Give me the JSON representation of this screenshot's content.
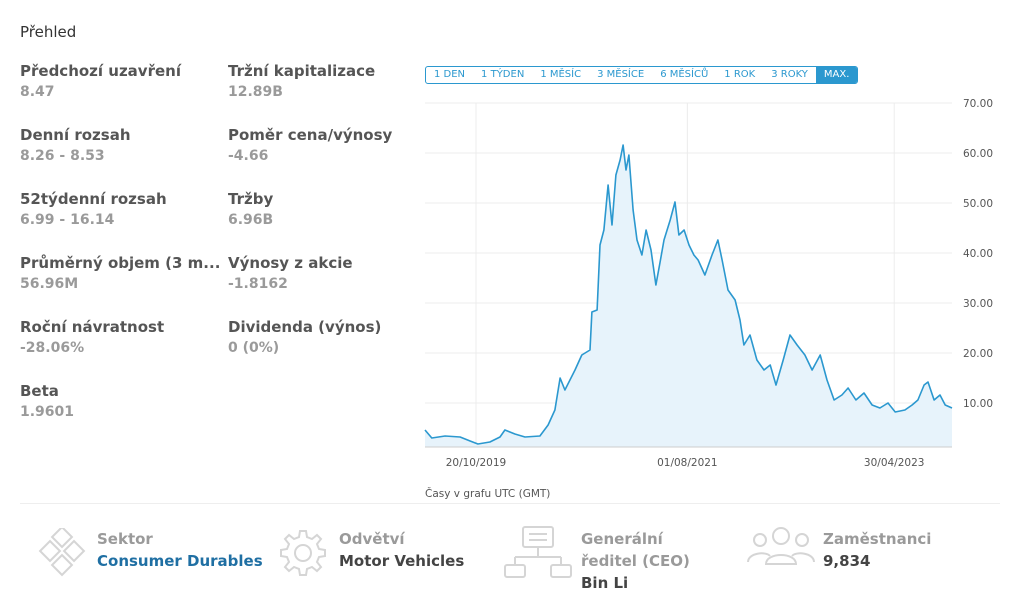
{
  "header": {
    "title": "Přehled"
  },
  "stats": [
    {
      "label": "Předchozí uzavření",
      "value": "8.47"
    },
    {
      "label": "Denní rozsah",
      "value": "8.26 - 8.53"
    },
    {
      "label": "52týdenní rozsah",
      "value": "6.99 - 16.14"
    },
    {
      "label": "Průměrný objem (3 m...",
      "value": "56.96M"
    },
    {
      "label": "Roční návratnost",
      "value": "-28.06%"
    },
    {
      "label": "Beta",
      "value": "1.9601"
    },
    {
      "label": "Tržní kapitalizace",
      "value": "12.89B"
    },
    {
      "label": "Poměr cena/výnosy",
      "value": "-4.66"
    },
    {
      "label": "Tržby",
      "value": "6.96B"
    },
    {
      "label": "Výnosy z akcie",
      "value": "-1.8162"
    },
    {
      "label": "Dividenda (výnos)",
      "value": "0 (0%)"
    }
  ],
  "range_buttons": {
    "items": [
      "1 DEN",
      "1 TÝDEN",
      "1 MĚSÍC",
      "3 MĚSÍCE",
      "6 MĚSÍCŮ",
      "1 ROK",
      "3 ROKY",
      "MAX."
    ],
    "selected": 7
  },
  "chart_data": {
    "type": "line",
    "note": "Časy v grafu UTC (GMT)",
    "color": "#2b98cf",
    "fill_color": "#e7f3fb",
    "grid": true,
    "x": [
      "2019-05-16",
      "2019-06-06",
      "2019-07-17",
      "2019-09-01",
      "2019-10-02",
      "2019-10-26",
      "2019-12-02",
      "2020-01-02",
      "2020-01-17",
      "2020-02-17",
      "2020-03-19",
      "2020-05-04",
      "2020-05-29",
      "2020-06-19",
      "2020-07-05",
      "2020-07-20",
      "2020-08-20",
      "2020-09-10",
      "2020-10-05",
      "2020-10-11",
      "2020-10-27",
      "2020-11-05",
      "2020-11-17",
      "2020-11-30",
      "2020-12-12",
      "2020-12-24",
      "2021-01-06",
      "2021-01-15",
      "2021-01-24",
      "2021-02-02",
      "2021-02-15",
      "2021-02-27",
      "2021-03-14",
      "2021-03-27",
      "2021-04-11",
      "2021-04-26",
      "2021-05-09",
      "2021-05-21",
      "2021-06-09",
      "2021-06-24",
      "2021-07-06",
      "2021-07-22",
      "2021-08-06",
      "2021-08-21",
      "2021-09-03",
      "2021-09-24",
      "2021-10-16",
      "2021-11-03",
      "2021-11-16",
      "2021-12-04",
      "2021-12-26",
      "2022-01-10",
      "2022-01-22",
      "2022-02-10",
      "2022-03-03",
      "2022-03-25",
      "2022-04-13",
      "2022-05-01",
      "2022-05-23",
      "2022-06-13",
      "2022-07-05",
      "2022-07-29",
      "2022-08-20",
      "2022-09-14",
      "2022-10-05",
      "2022-10-27",
      "2022-11-20",
      "2022-12-09",
      "2023-01-02",
      "2023-01-27",
      "2023-02-21",
      "2023-03-17",
      "2023-04-11",
      "2023-05-03",
      "2023-06-02",
      "2023-06-24",
      "2023-07-12",
      "2023-07-31",
      "2023-08-12",
      "2023-08-31",
      "2023-09-18",
      "2023-10-04",
      "2023-10-25"
    ],
    "values": [
      4.6,
      3.0,
      3.4,
      3.2,
      2.4,
      1.8,
      2.2,
      3.2,
      4.6,
      3.8,
      3.2,
      3.4,
      5.6,
      8.6,
      15,
      12.6,
      16.6,
      19.6,
      20.6,
      28.2,
      28.6,
      41.6,
      44.6,
      53.6,
      45.6,
      55.6,
      58.6,
      61.6,
      56.6,
      59.6,
      48.6,
      42.6,
      39.6,
      44.6,
      40.6,
      33.6,
      38.2,
      42.6,
      46.6,
      50.2,
      43.6,
      44.6,
      41.6,
      39.6,
      38.6,
      35.6,
      39.6,
      42.6,
      38.6,
      32.6,
      30.6,
      26.6,
      21.6,
      23.6,
      18.6,
      16.6,
      17.6,
      13.6,
      18.6,
      23.6,
      21.6,
      19.6,
      16.6,
      19.6,
      14.6,
      10.6,
      11.6,
      13,
      10.6,
      12,
      9.6,
      9,
      10,
      8.2,
      8.6,
      9.6,
      10.6,
      13.6,
      14.2,
      10.6,
      11.6,
      9.6,
      9.0
    ],
    "xlim": [
      "2019-05-16",
      "2023-10-25"
    ],
    "xticks": [
      {
        "value": "2019-10-20",
        "label": "20/10/2019"
      },
      {
        "value": "2021-08-01",
        "label": "01/08/2021"
      },
      {
        "value": "2023-04-30",
        "label": "30/04/2023"
      }
    ],
    "ylim": [
      1.2,
      70
    ],
    "yticks": [
      {
        "value": 10,
        "label": "10.00"
      },
      {
        "value": 20,
        "label": "20.00"
      },
      {
        "value": 30,
        "label": "30.00"
      },
      {
        "value": 40,
        "label": "40.00"
      },
      {
        "value": 50,
        "label": "50.00"
      },
      {
        "value": 60,
        "label": "60.00"
      },
      {
        "value": 70,
        "label": "70.00"
      }
    ]
  },
  "info": [
    {
      "label": "Sektor",
      "value": "Consumer Durables"
    },
    {
      "label": "Odvětví",
      "value": "Motor Vehicles"
    },
    {
      "label": "Generální ředitel (CEO)",
      "value": "Bin Li"
    },
    {
      "label": "Zaměstnanci",
      "value": "9,834"
    }
  ]
}
